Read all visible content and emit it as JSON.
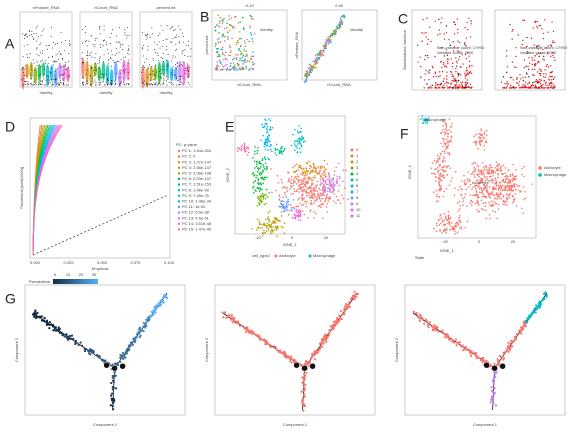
{
  "panels": {
    "A": {
      "label": "A",
      "titles": [
        "nFeature_RNA",
        "nCount_RNA",
        "percent.mt"
      ],
      "x_label": "Identity"
    },
    "B": {
      "label": "B",
      "titles": [
        "-0.13",
        "0.96"
      ],
      "x_labels": [
        "nCount_RNA",
        "nCount_RNA"
      ],
      "y_labels": [
        "percent.mt",
        "nFeature_RNA"
      ],
      "legend_title": "Identity"
    },
    "C": {
      "label": "C",
      "y_label": "Standardized Variance",
      "legend": [
        "Non-variable count: 17993",
        "Variable count: 2000"
      ]
    },
    "D": {
      "label": "D",
      "y_label": "Theoretical [runif(1000)]",
      "x_label": "Empirical",
      "x_ticks": [
        "0.000",
        "0.025",
        "0.050",
        "0.075",
        "0.100"
      ],
      "legend_title": "PC: p-value",
      "legend": [
        "PC 1: 1.64e-253",
        "PC 2: 0",
        "PC 3: 1.27e-147",
        "PC 4: 2.66e-147",
        "PC 5: 3.08e-198",
        "PC 6: 2.03e-107",
        "PC 7: 1.51e-153",
        "PC 8: 1.46e-99",
        "PC 9: 7.45e-75",
        "PC 10: 1.46e-34",
        "PC 11: 1e-92",
        "PC 12: 6.5e-38",
        "PC 13: 4.5e-51",
        "PC 14: 3.51e-48",
        "PC 15: 1.47e-40"
      ],
      "pseudotime_title": "Pseudotime",
      "pseudotime_ticks": [
        "0",
        "10",
        "20",
        "30"
      ]
    },
    "E": {
      "label": "E",
      "y_label": "tSNE_2",
      "x_label": "tSNE_1",
      "x_ticks": [
        "-20",
        "0",
        "20"
      ],
      "clusters": [
        "0",
        "1",
        "2",
        "3",
        "4",
        "5",
        "6",
        "7",
        "8",
        "9",
        "10",
        "11"
      ],
      "cell_type_title": "cell_type2",
      "cell_types": [
        "Astrocyte",
        "Macrophage"
      ]
    },
    "F": {
      "label": "F",
      "y_label": "tSNE_2",
      "x_label": "tSNE_1",
      "x_ticks": [
        "-20",
        "0",
        "20"
      ],
      "legend": [
        "Astrocyte",
        "Macrophage"
      ],
      "in_plot": [
        "Macrophage",
        "Astrocyte"
      ],
      "state_title": "State"
    },
    "G": {
      "label": "G",
      "x_labels": [
        "Component 1",
        "Component 1",
        "Component 1"
      ],
      "y_labels": [
        "Component 2",
        "Component 2",
        "Component 2"
      ]
    }
  }
}
